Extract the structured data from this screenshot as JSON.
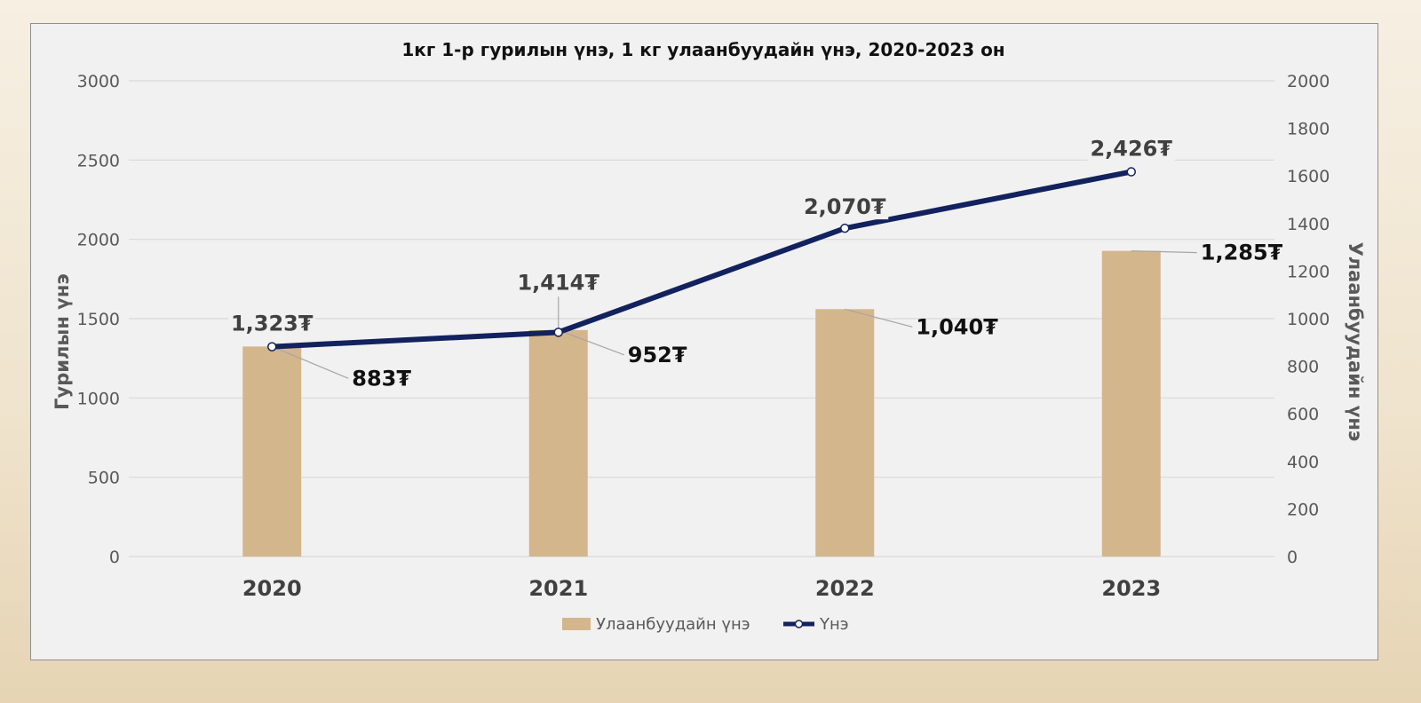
{
  "chart_data": {
    "type": "bar+line",
    "title": "1кг 1-р гурилын үнэ, 1 кг улаанбуудайн үнэ, 2020-2023 он",
    "categories": [
      "2020",
      "2021",
      "2022",
      "2023"
    ],
    "ylabel_left": "Гурилын үнэ",
    "ylabel_right": "Улаанбуудайн үнэ",
    "ylim_left": [
      0,
      3000
    ],
    "yticks_left": [
      "0",
      "500",
      "1000",
      "1500",
      "2000",
      "2500",
      "3000"
    ],
    "ylim_right": [
      0,
      2000
    ],
    "yticks_right": [
      "0",
      "200",
      "400",
      "600",
      "800",
      "1000",
      "1200",
      "1400",
      "1600",
      "1800",
      "2000"
    ],
    "grid": true,
    "legend_position": "bottom",
    "series": [
      {
        "name": "Улаанбуудайн үнэ",
        "type": "bar",
        "axis": "right",
        "values": [
          883,
          952,
          1040,
          1285
        ],
        "labels": [
          "883₮",
          "952₮",
          "1,040₮",
          "1,285₮"
        ],
        "color": "#d4b68c"
      },
      {
        "name": "Үнэ",
        "type": "line",
        "axis": "left",
        "values": [
          1323,
          1414,
          2070,
          2426
        ],
        "labels": [
          "1,323₮",
          "1,414₮",
          "2,070₮",
          "2,426₮"
        ],
        "color": "#12225e"
      }
    ]
  }
}
